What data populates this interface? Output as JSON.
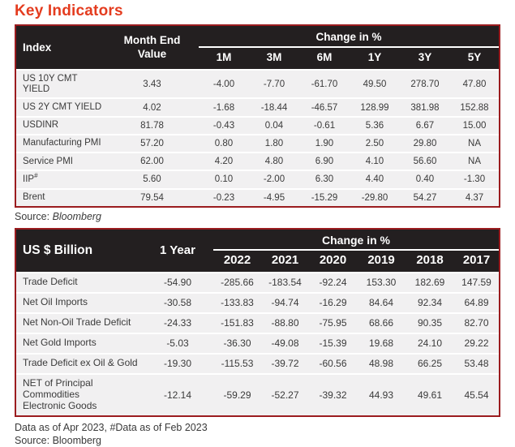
{
  "page_title": "Key Indicators",
  "colors": {
    "title": "#e43c1f",
    "header_bg": "#231f20",
    "header_text": "#ffffff",
    "table_border": "#9b1c1f",
    "row_bg": "#f1f0f1",
    "body_text": "#3a3a3a"
  },
  "table1": {
    "corner_label": "Index",
    "value_col_label": "Month End Value",
    "group_label": "Change in %",
    "period_labels": [
      "1M",
      "3M",
      "6M",
      "1Y",
      "3Y",
      "5Y"
    ],
    "rows": [
      {
        "label": [
          "US 10Y CMT YIELD"
        ],
        "values": [
          "3.43",
          "-4.00",
          "-7.70",
          "-61.70",
          "49.50",
          "278.70",
          "47.80"
        ]
      },
      {
        "label": [
          "US 2Y CMT YIELD"
        ],
        "values": [
          "4.02",
          "-1.68",
          "-18.44",
          "-46.57",
          "128.99",
          "381.98",
          "152.88"
        ]
      },
      {
        "label": [
          "USDINR"
        ],
        "values": [
          "81.78",
          "-0.43",
          "0.04",
          "-0.61",
          "5.36",
          "6.67",
          "15.00"
        ]
      },
      {
        "label": [
          "Manufacturing PMI"
        ],
        "values": [
          "57.20",
          "0.80",
          "1.80",
          "1.90",
          "2.50",
          "29.80",
          "NA"
        ]
      },
      {
        "label": [
          "Service PMI"
        ],
        "values": [
          "62.00",
          "4.20",
          "4.80",
          "6.90",
          "4.10",
          "56.60",
          "NA"
        ]
      },
      {
        "label": [
          "IIP"
        ],
        "sup": "#",
        "values": [
          "5.60",
          "0.10",
          "-2.00",
          "6.30",
          "4.40",
          "0.40",
          "-1.30"
        ]
      },
      {
        "label": [
          "Brent"
        ],
        "values": [
          "79.54",
          "-0.23",
          "-4.95",
          "-15.29",
          "-29.80",
          "54.27",
          "4.37"
        ]
      }
    ],
    "source_prefix": "Source: ",
    "source_name": "Bloomberg"
  },
  "table2": {
    "corner_label": "US $ Billion",
    "value_col_label": "1 Year",
    "group_label": "Change in %",
    "period_labels": [
      "2022",
      "2021",
      "2020",
      "2019",
      "2018",
      "2017"
    ],
    "rows": [
      {
        "label": [
          "Trade Deficit"
        ],
        "values": [
          "-54.90",
          "-285.66",
          "-183.54",
          "-92.24",
          "153.30",
          "182.69",
          "147.59"
        ]
      },
      {
        "label": [
          "Net Oil Imports"
        ],
        "values": [
          "-30.58",
          "-133.83",
          "-94.74",
          "-16.29",
          "84.64",
          "92.34",
          "64.89"
        ]
      },
      {
        "label": [
          "Net Non-Oil Trade Deficit"
        ],
        "values": [
          "-24.33",
          "-151.83",
          "-88.80",
          "-75.95",
          "68.66",
          "90.35",
          "82.70"
        ]
      },
      {
        "label": [
          "Net Gold Imports"
        ],
        "values": [
          "-5.03",
          "-36.30",
          "-49.08",
          "-15.39",
          "19.68",
          "24.10",
          "29.22"
        ]
      },
      {
        "label": [
          "Trade Deficit ex Oil & Gold"
        ],
        "values": [
          "-19.30",
          "-115.53",
          "-39.72",
          "-60.56",
          "48.98",
          "66.25",
          "53.48"
        ]
      },
      {
        "label": [
          "NET of Principal Commodities",
          "Electronic Goods"
        ],
        "values": [
          "-12.14",
          "-59.29",
          "-52.27",
          "-39.32",
          "44.93",
          "49.61",
          "45.54"
        ]
      }
    ],
    "footnote": "Data as of Apr 2023, #Data as of Feb 2023",
    "source_prefix": "Source: ",
    "source_name": "Bloomberg"
  }
}
